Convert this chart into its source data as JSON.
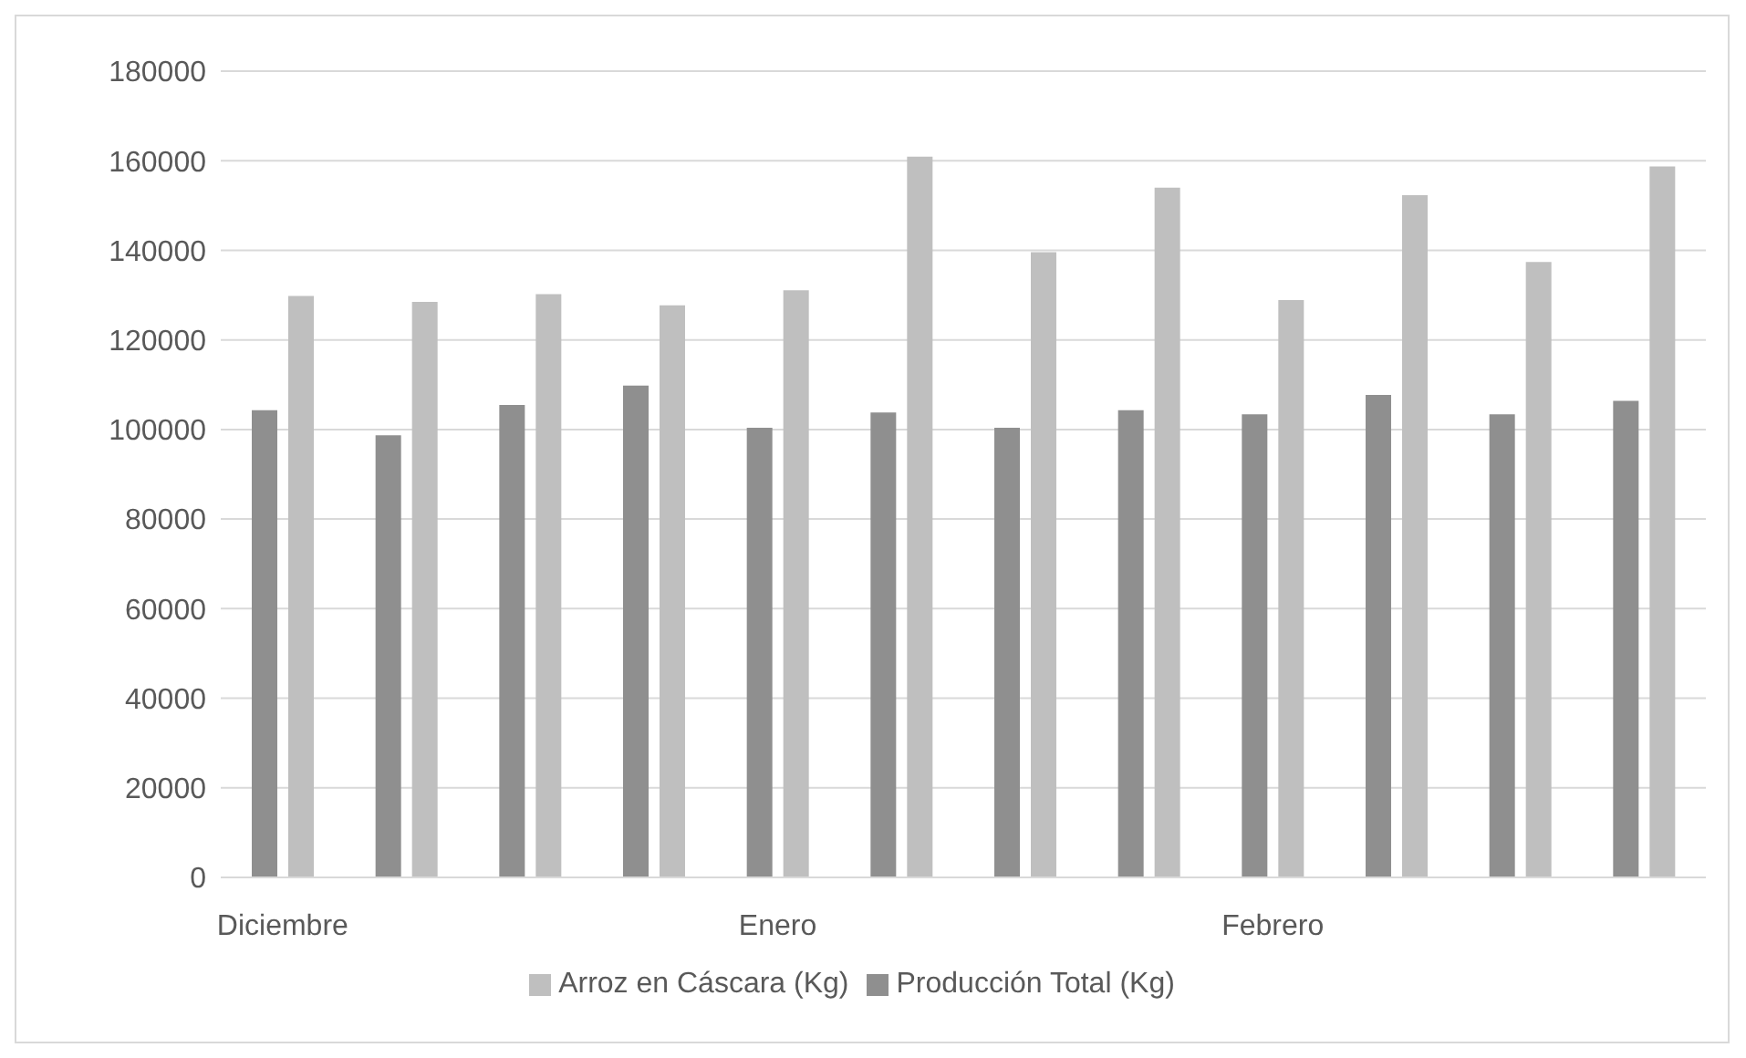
{
  "chart_data": {
    "type": "bar",
    "categories": [
      "Diciembre",
      null,
      null,
      null,
      "Enero",
      null,
      null,
      null,
      "Febrero",
      null,
      null,
      null
    ],
    "series": [
      {
        "name": "Producción Total (Kg)",
        "color": "#8f8f8f",
        "values": [
          104300,
          98700,
          105500,
          109800,
          100400,
          103800,
          100400,
          104300,
          103400,
          107700,
          103400,
          106400
        ]
      },
      {
        "name": "Arroz en Cáscara (Kg)",
        "color": "#bfbfbf",
        "values": [
          129800,
          128500,
          130200,
          127700,
          131100,
          160900,
          139600,
          154000,
          128900,
          152300,
          137400,
          158700
        ]
      }
    ],
    "ylim": [
      0,
      180000
    ],
    "yticks": [
      0,
      20000,
      40000,
      60000,
      80000,
      100000,
      120000,
      140000,
      160000,
      180000
    ],
    "grid": "y",
    "legend": "bottom"
  }
}
